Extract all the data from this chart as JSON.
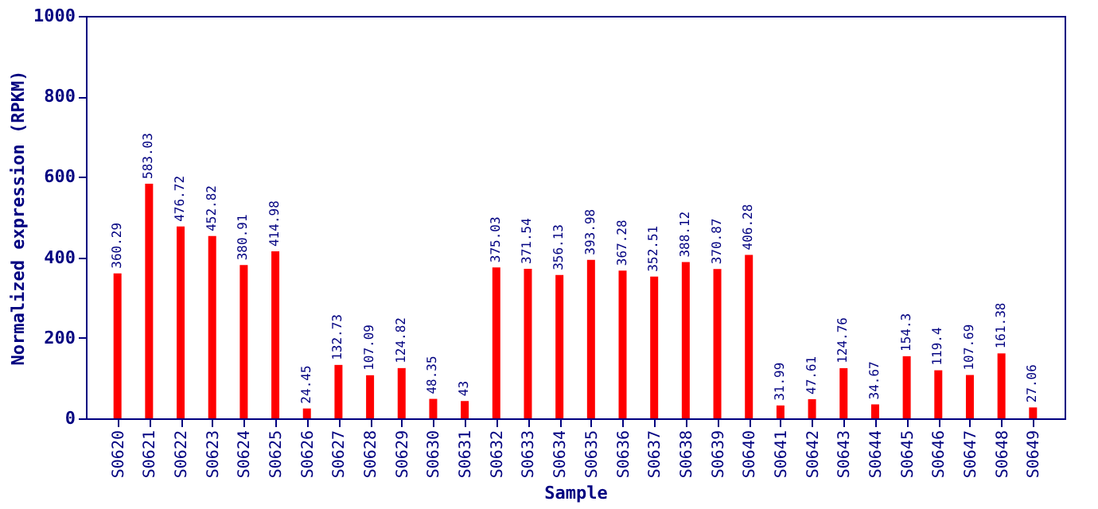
{
  "chart_data": {
    "type": "bar",
    "xlabel": "Sample",
    "ylabel": "Normalized expression (RPKM)",
    "categories": [
      "S0620",
      "S0621",
      "S0622",
      "S0623",
      "S0624",
      "S0625",
      "S0626",
      "S0627",
      "S0628",
      "S0629",
      "S0630",
      "S0631",
      "S0632",
      "S0633",
      "S0634",
      "S0635",
      "S0636",
      "S0637",
      "S0638",
      "S0639",
      "S0640",
      "S0641",
      "S0642",
      "S0643",
      "S0644",
      "S0645",
      "S0646",
      "S0647",
      "S0648",
      "S0649"
    ],
    "values": [
      360.29,
      583.03,
      476.72,
      452.82,
      380.91,
      414.98,
      24.45,
      132.73,
      107.09,
      124.82,
      48.35,
      43,
      375.03,
      371.54,
      356.13,
      393.98,
      367.28,
      352.51,
      388.12,
      370.87,
      406.28,
      31.99,
      47.61,
      124.76,
      34.67,
      154.3,
      119.4,
      107.69,
      161.38,
      27.06
    ],
    "color": "#ff0000",
    "ylim": [
      0,
      1000
    ],
    "yticks": [
      0,
      200,
      400,
      600,
      800,
      1000
    ],
    "data_labels": true,
    "grid": false
  }
}
